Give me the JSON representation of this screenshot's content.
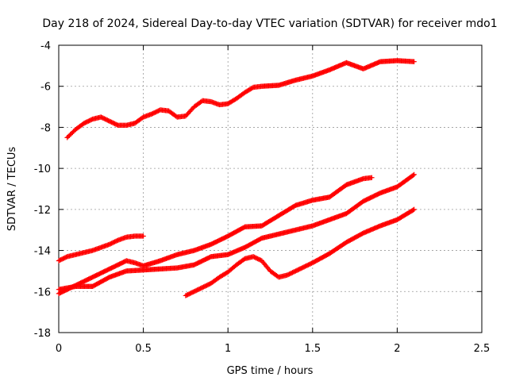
{
  "chart_data": {
    "type": "scatter",
    "title": "Day 218 of 2024, Sidereal Day-to-day VTEC variation (SDTVAR) for receiver mdo1",
    "xlabel": "GPS time / hours",
    "ylabel": "SDTVAR / TECUs",
    "xlim": [
      0,
      2.5
    ],
    "ylim": [
      -18,
      -4
    ],
    "xticks": [
      0,
      0.5,
      1,
      1.5,
      2,
      2.5
    ],
    "xtick_labels": [
      "0",
      "0.5",
      "1",
      "1.5",
      "2",
      "2.5"
    ],
    "yticks": [
      -18,
      -16,
      -14,
      -12,
      -10,
      -8,
      -6,
      -4
    ],
    "ytick_labels": [
      "-18",
      "-16",
      "-14",
      "-12",
      "-10",
      "-8",
      "-6",
      "-4"
    ],
    "grid": true,
    "marker": "+",
    "marker_color": "#ff0000",
    "series": [
      {
        "x": [
          0.05,
          0.1,
          0.15,
          0.2,
          0.25,
          0.3,
          0.35,
          0.4,
          0.45,
          0.5,
          0.55,
          0.6,
          0.65,
          0.7,
          0.75,
          0.8,
          0.85,
          0.9,
          0.95,
          1.0,
          1.05,
          1.1,
          1.15,
          1.2,
          1.3,
          1.4,
          1.5,
          1.6,
          1.7,
          1.8,
          1.9,
          2.0,
          2.1
        ],
        "y": [
          -8.5,
          -8.1,
          -7.8,
          -7.6,
          -7.5,
          -7.7,
          -7.9,
          -7.9,
          -7.8,
          -7.5,
          -7.35,
          -7.15,
          -7.2,
          -7.5,
          -7.45,
          -7.0,
          -6.7,
          -6.75,
          -6.9,
          -6.85,
          -6.6,
          -6.3,
          -6.05,
          -6.0,
          -5.95,
          -5.7,
          -5.5,
          -5.2,
          -4.85,
          -5.15,
          -4.8,
          -4.75,
          -4.8
        ]
      },
      {
        "x": [
          0.0,
          0.05,
          0.1,
          0.15,
          0.2,
          0.25,
          0.3,
          0.35,
          0.4,
          0.45,
          0.5
        ],
        "y": [
          -14.5,
          -14.3,
          -14.2,
          -14.1,
          -14.0,
          -13.85,
          -13.7,
          -13.5,
          -13.35,
          -13.3,
          -13.3
        ]
      },
      {
        "x": [
          0.0,
          0.1,
          0.2,
          0.3,
          0.4,
          0.45,
          0.5,
          0.6,
          0.7,
          0.8,
          0.9,
          1.0,
          1.1,
          1.2,
          1.3,
          1.4,
          1.5,
          1.6,
          1.7,
          1.8,
          1.85
        ],
        "y": [
          -16.1,
          -15.7,
          -15.3,
          -14.9,
          -14.5,
          -14.6,
          -14.75,
          -14.5,
          -14.2,
          -14.0,
          -13.7,
          -13.3,
          -12.85,
          -12.8,
          -12.3,
          -11.8,
          -11.55,
          -11.4,
          -10.8,
          -10.5,
          -10.45
        ]
      },
      {
        "x": [
          0.0,
          0.1,
          0.2,
          0.3,
          0.4,
          0.5,
          0.6,
          0.7,
          0.8,
          0.9,
          1.0,
          1.1,
          1.2,
          1.3,
          1.4,
          1.5,
          1.6,
          1.7,
          1.8,
          1.9,
          2.0,
          2.1
        ],
        "y": [
          -15.9,
          -15.75,
          -15.75,
          -15.3,
          -15.0,
          -14.95,
          -14.9,
          -14.85,
          -14.7,
          -14.3,
          -14.2,
          -13.85,
          -13.4,
          -13.2,
          -13.0,
          -12.8,
          -12.5,
          -12.2,
          -11.6,
          -11.2,
          -10.9,
          -10.3
        ]
      },
      {
        "x": [
          0.75,
          0.8,
          0.85,
          0.9,
          0.95,
          1.0,
          1.05,
          1.1,
          1.15,
          1.2,
          1.25,
          1.3,
          1.35,
          1.4,
          1.45,
          1.5,
          1.6,
          1.7,
          1.8,
          1.9,
          2.0,
          2.1
        ],
        "y": [
          -16.2,
          -16.0,
          -15.8,
          -15.6,
          -15.3,
          -15.05,
          -14.7,
          -14.4,
          -14.3,
          -14.5,
          -15.0,
          -15.3,
          -15.2,
          -15.0,
          -14.8,
          -14.6,
          -14.15,
          -13.6,
          -13.15,
          -12.8,
          -12.5,
          -12.0
        ]
      }
    ]
  }
}
